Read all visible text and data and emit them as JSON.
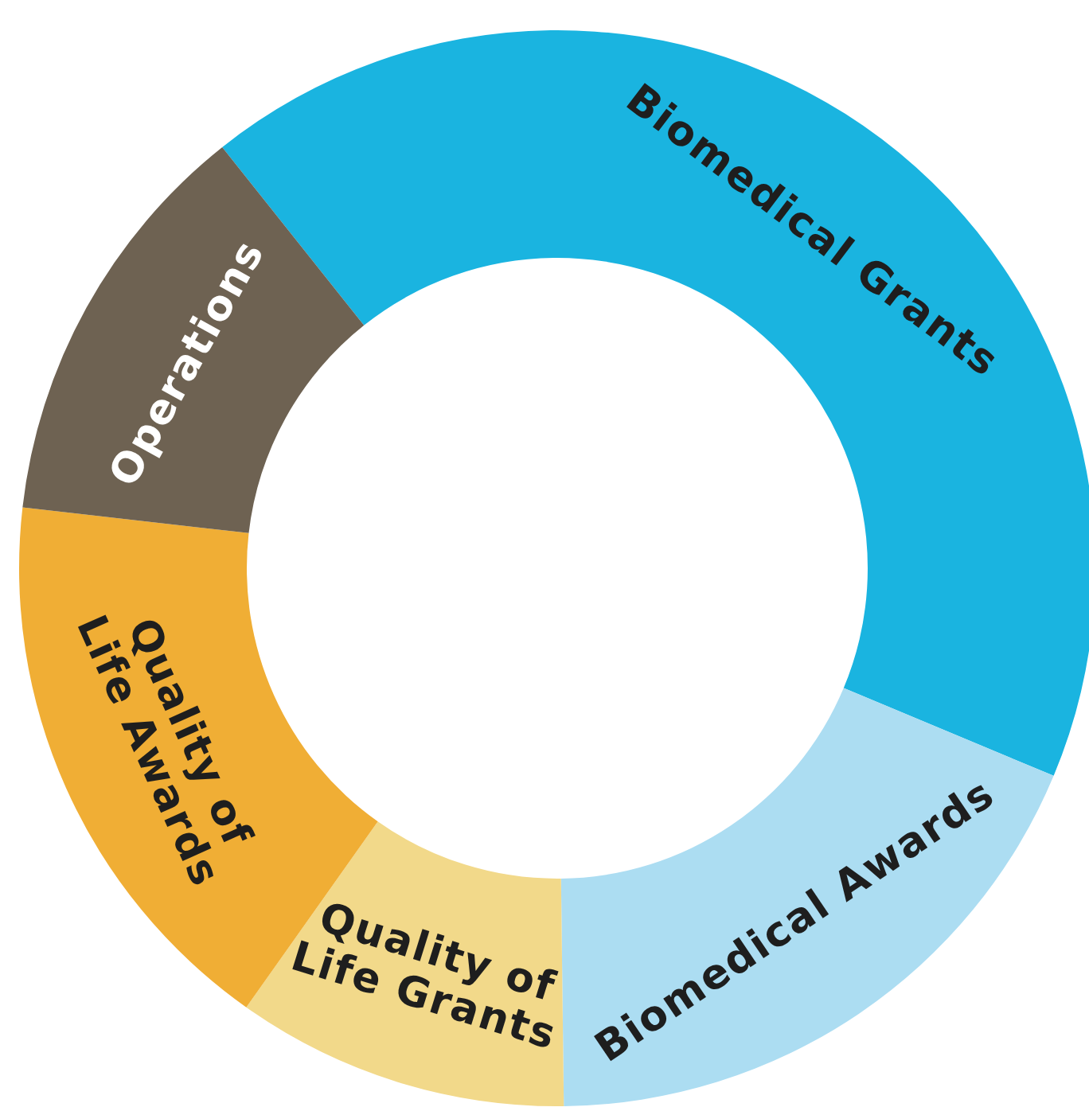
{
  "chart_data": {
    "type": "donut",
    "categories": [
      "Biomedical Grants",
      "Biomedical Awards",
      "Quality of Life Grants",
      "Quality of Life Awards",
      "Operations"
    ],
    "values": [
      42,
      18.5,
      10,
      17,
      12.5
    ],
    "colors": [
      "#1ab4e0",
      "#acddf2",
      "#f2d98a",
      "#f0ae35",
      "#6e6252"
    ]
  }
}
